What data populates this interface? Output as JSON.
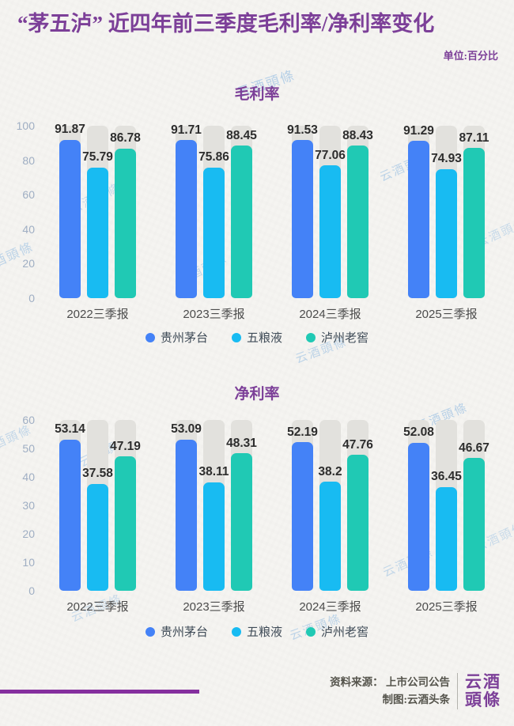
{
  "page": {
    "title": "“茅五泸” 近四年前三季度毛利率/净利率变化",
    "unit_label": "单位:百分比",
    "watermark_text": "云酒頭條",
    "footer": {
      "source_line": "资料来源： 上市公司公告",
      "credit_line": "制图:云酒头条",
      "logo_line1": "云酒",
      "logo_line2": "頭條"
    }
  },
  "colors": {
    "accent_purple": "#7c3f98",
    "bottom_line_purple": "#852f9e",
    "maotai_blue": "#4482f7",
    "wuliangye_cyan": "#18bbf2",
    "luzhou_teal": "#20c9b4",
    "track_gray": "#e2e1dd",
    "background": "#f5f4f1"
  },
  "chart_data": [
    {
      "type": "bar",
      "title": "毛利率",
      "categories": [
        "2022三季报",
        "2023三季报",
        "2024三季报",
        "2025三季报"
      ],
      "series": [
        {
          "name": "贵州茅台",
          "color": "#4482f7",
          "values": [
            91.87,
            91.71,
            91.53,
            91.29
          ]
        },
        {
          "name": "五粮液",
          "color": "#18bbf2",
          "values": [
            75.79,
            75.86,
            77.06,
            74.93
          ]
        },
        {
          "name": "泸州老窖",
          "color": "#20c9b4",
          "values": [
            86.78,
            88.45,
            88.43,
            87.11
          ]
        }
      ],
      "ylim": [
        0,
        100
      ],
      "yticks": [
        0,
        20,
        40,
        60,
        80,
        100
      ],
      "grid": false,
      "legend_position": "bottom",
      "value_labels": true
    },
    {
      "type": "bar",
      "title": "净利率",
      "categories": [
        "2022三季报",
        "2023三季报",
        "2024三季报",
        "2025三季报"
      ],
      "series": [
        {
          "name": "贵州茅台",
          "color": "#4482f7",
          "values": [
            53.14,
            53.09,
            52.19,
            52.08
          ]
        },
        {
          "name": "五粮液",
          "color": "#18bbf2",
          "values": [
            37.58,
            38.11,
            38.2,
            36.45
          ]
        },
        {
          "name": "泸州老窖",
          "color": "#20c9b4",
          "values": [
            47.19,
            48.31,
            47.76,
            46.67
          ]
        }
      ],
      "ylim": [
        0,
        60
      ],
      "yticks": [
        0,
        10,
        20,
        30,
        40,
        50,
        60
      ],
      "grid": false,
      "legend_position": "bottom",
      "value_labels": true
    }
  ]
}
